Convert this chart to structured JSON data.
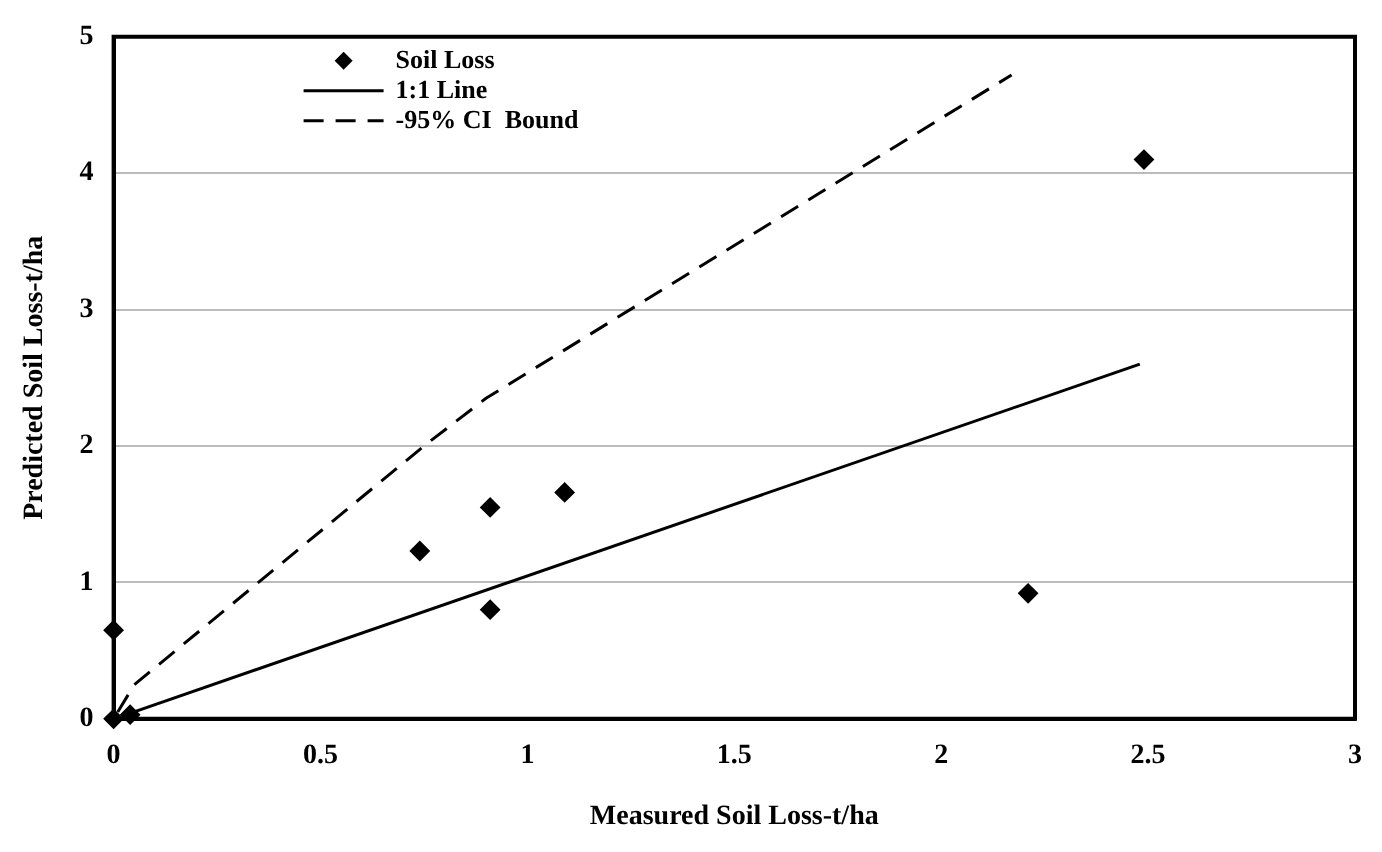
{
  "chart_data": {
    "type": "scatter",
    "xlabel": "Measured Soil Loss-t/ha",
    "ylabel": "Predicted Soil Loss-t/ha",
    "xlim": [
      0,
      3
    ],
    "xticks": [
      0,
      0.5,
      1,
      1.5,
      2,
      2.5,
      3
    ],
    "ylim": [
      0,
      5
    ],
    "yticks": [
      0,
      1,
      2,
      3,
      4,
      5
    ],
    "grid": "y",
    "legend": "top left",
    "series": [
      {
        "name": "Soil Loss",
        "marker": "diamond",
        "color": "#000000",
        "x": [
          0,
          0,
          0.04,
          0.74,
          0.91,
          0.91,
          1.09,
          2.21,
          2.49
        ],
        "values": [
          0,
          0.65,
          0.03,
          1.23,
          1.55,
          0.8,
          1.66,
          0.92,
          4.1
        ]
      },
      {
        "name": "1:1 Line",
        "type": "line",
        "line_style": "solid",
        "color": "#000000",
        "x": [
          0.02,
          2.48
        ],
        "values": [
          0.02,
          2.6
        ]
      },
      {
        "name": "-95% CI  Bound",
        "type": "line",
        "line_style": "dashed",
        "color": "#000000",
        "x": [
          0.01,
          0.05,
          0.75,
          0.9,
          2.17
        ],
        "values": [
          0.05,
          0.25,
          2.0,
          2.35,
          4.72
        ]
      }
    ]
  }
}
